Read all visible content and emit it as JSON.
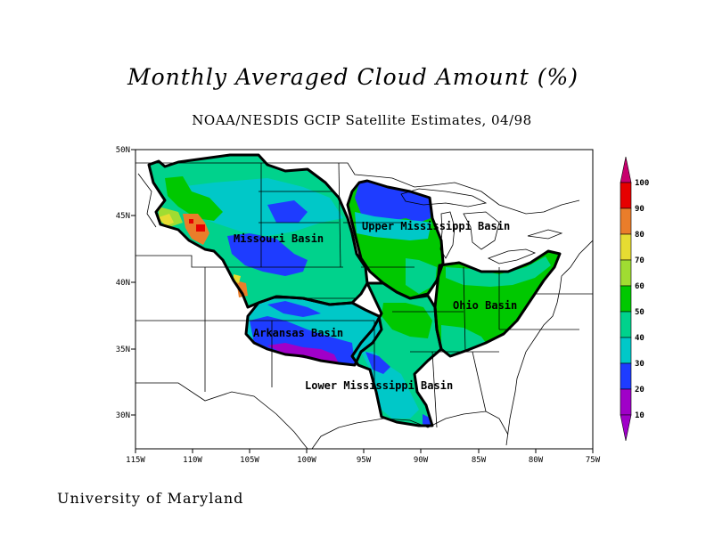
{
  "title": "Monthly Averaged Cloud Amount (%)",
  "subtitle": "NOAA/NESDIS GCIP Satellite Estimates, 04/98",
  "footer": "University of Maryland",
  "map": {
    "lat_ticks": [
      "50N",
      "45N",
      "40N",
      "35N",
      "30N"
    ],
    "lon_ticks": [
      "115W",
      "110W",
      "105W",
      "100W",
      "95W",
      "90W",
      "85W",
      "80W",
      "75W"
    ],
    "basins": [
      {
        "name": "Missouri Basin",
        "dominant_cloud_pct": 35
      },
      {
        "name": "Upper Mississippi Basin",
        "dominant_cloud_pct": 50
      },
      {
        "name": "Ohio Basin",
        "dominant_cloud_pct": 50
      },
      {
        "name": "Arkansas Basin",
        "dominant_cloud_pct": 20
      },
      {
        "name": "Lower Mississippi Basin",
        "dominant_cloud_pct": 35
      }
    ]
  },
  "colorbar": {
    "labels": [
      "100",
      "90",
      "80",
      "70",
      "60",
      "50",
      "40",
      "30",
      "20",
      "10"
    ],
    "colors": {
      "90_100": "#c8006e",
      "80_90": "#e60000",
      "70_80": "#ea7d2a",
      "60_70": "#e6dc32",
      "50_60": "#a0dc32",
      "40_50": "#00c800",
      "30_40": "#00d28c",
      "20_30": "#00c8c8",
      "10_20": "#1e3cff",
      "0_10": "#a000c8"
    }
  }
}
